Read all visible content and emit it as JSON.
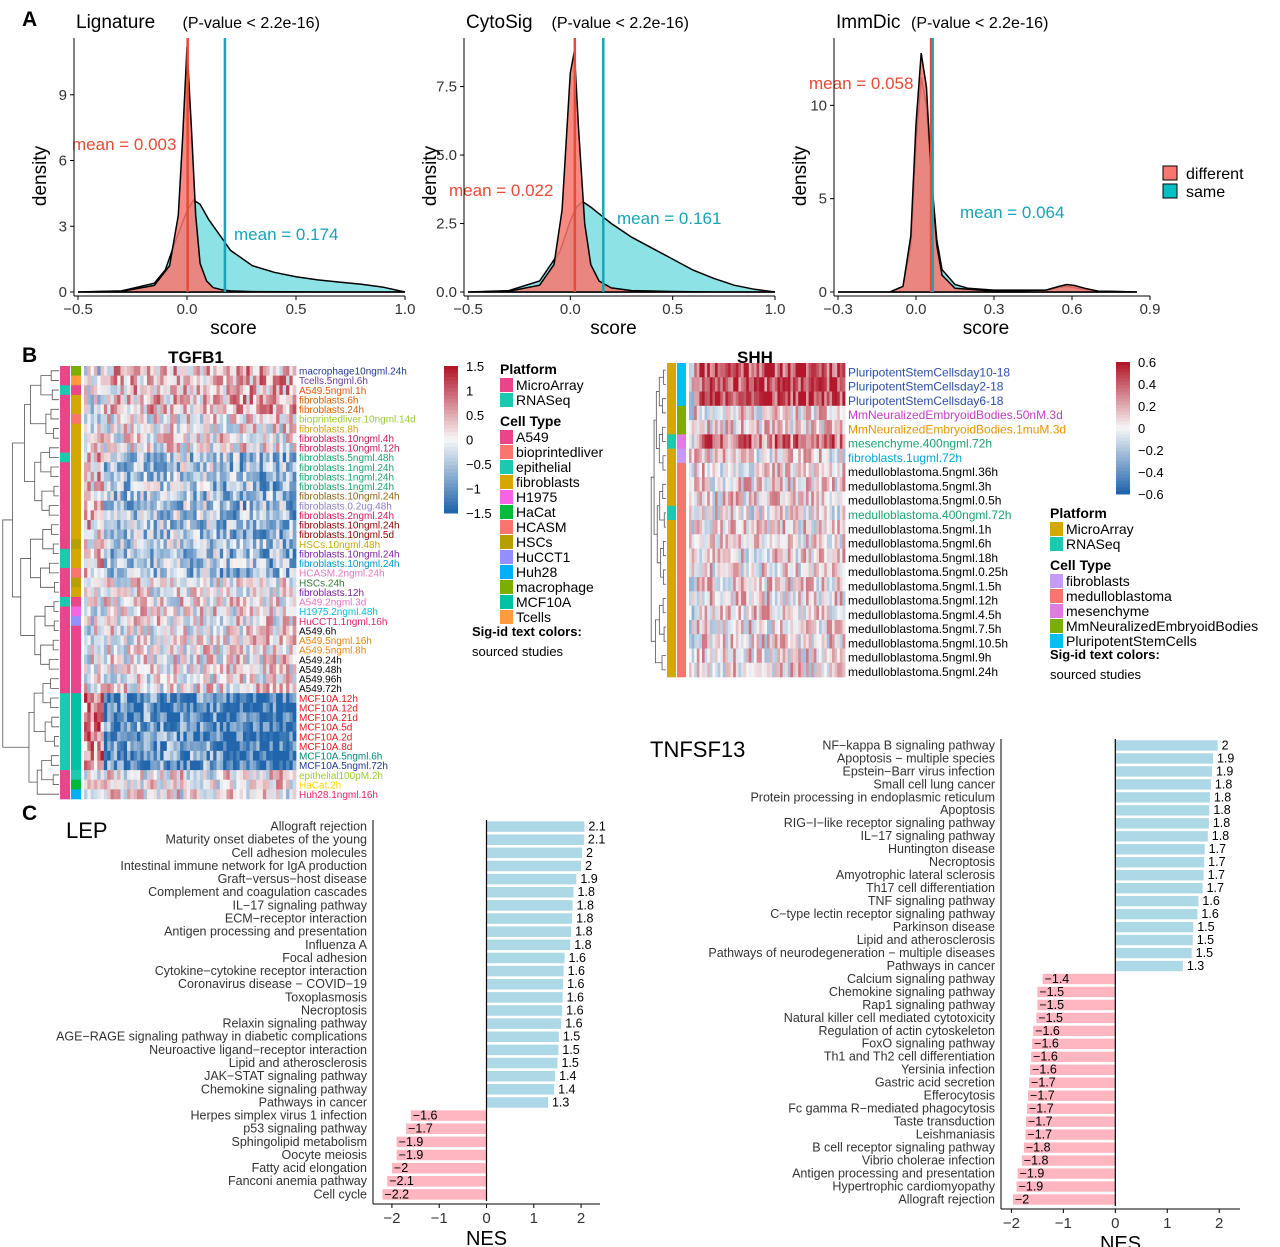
{
  "panel_letters": [
    "A",
    "B",
    "C"
  ],
  "colors": {
    "different": "#F8766D",
    "same": "#00BFC4",
    "mean_different": "#E64B35",
    "mean_same": "#17A3B8",
    "positive_bar": "#ADD8E6",
    "negative_bar": "#FFB6C1",
    "heat_low": "#2166AC",
    "heat_high": "#B2182B"
  },
  "chart_data": [
    {
      "type": "area",
      "title": "Lignature",
      "pvalue": "(P-value < 2.2e-16)",
      "xlabel": "score",
      "ylabel": "density",
      "xlim": [
        -0.5,
        1.0
      ],
      "ylim": [
        0,
        11.5
      ],
      "xticks": [
        "−0.5",
        "0.0",
        "0.5",
        "1.0"
      ],
      "xtick_values": [
        -0.5,
        0.0,
        0.5,
        1.0
      ],
      "yticks": [
        "0",
        "3",
        "6",
        "9"
      ],
      "ytick_values": [
        0,
        3,
        6,
        9
      ],
      "series": [
        {
          "name": "different",
          "x": [
            -0.5,
            -0.3,
            -0.15,
            -0.08,
            -0.04,
            -0.02,
            0,
            0.02,
            0.04,
            0.06,
            0.09,
            0.12,
            0.16,
            0.2,
            0.3,
            0.45,
            0.6,
            0.8,
            1.0
          ],
          "y": [
            0,
            0.03,
            0.3,
            1.2,
            3.5,
            7.0,
            11.2,
            7.5,
            3.5,
            1.3,
            0.5,
            0.2,
            0.1,
            0.05,
            0.02,
            0.01,
            0,
            0,
            0
          ]
        },
        {
          "name": "same",
          "x": [
            -0.5,
            -0.3,
            -0.15,
            -0.1,
            -0.05,
            0,
            0.03,
            0.06,
            0.1,
            0.15,
            0.2,
            0.3,
            0.4,
            0.5,
            0.6,
            0.7,
            0.8,
            0.9,
            1.0
          ],
          "y": [
            0,
            0.05,
            0.4,
            1.0,
            2.4,
            3.7,
            4.2,
            4.0,
            3.3,
            2.6,
            1.9,
            1.2,
            0.9,
            0.7,
            0.55,
            0.45,
            0.35,
            0.22,
            0
          ]
        }
      ],
      "means": [
        {
          "series": "different",
          "value": 0.003,
          "label": "mean = 0.003"
        },
        {
          "series": "same",
          "value": 0.174,
          "label": "mean = 0.174"
        }
      ]
    },
    {
      "type": "area",
      "title": "CytoSig",
      "pvalue": "(P-value < 2.2e-16)",
      "xlabel": "score",
      "ylabel": "density",
      "xlim": [
        -0.5,
        1.0
      ],
      "ylim": [
        0,
        9.2
      ],
      "xticks": [
        "−0.5",
        "0.0",
        "0.5",
        "1.0"
      ],
      "xtick_values": [
        -0.5,
        0.0,
        0.5,
        1.0
      ],
      "yticks": [
        "0.0",
        "2.5",
        "5.0",
        "7.5"
      ],
      "ytick_values": [
        0,
        2.5,
        5.0,
        7.5
      ],
      "series": [
        {
          "name": "different",
          "x": [
            -0.5,
            -0.3,
            -0.15,
            -0.08,
            -0.04,
            0,
            0.02,
            0.04,
            0.07,
            0.1,
            0.14,
            0.2,
            0.3,
            0.5,
            0.7,
            1.0
          ],
          "y": [
            0,
            0.03,
            0.25,
            1.0,
            3.0,
            8.0,
            8.8,
            6.0,
            2.5,
            1.0,
            0.4,
            0.15,
            0.05,
            0.02,
            0,
            0
          ]
        },
        {
          "name": "same",
          "x": [
            -0.5,
            -0.3,
            -0.15,
            -0.05,
            0,
            0.03,
            0.06,
            0.1,
            0.15,
            0.2,
            0.3,
            0.4,
            0.5,
            0.6,
            0.7,
            0.8,
            0.9,
            1.0
          ],
          "y": [
            0,
            0.05,
            0.4,
            1.5,
            2.6,
            3.1,
            3.3,
            3.1,
            2.8,
            2.5,
            2.0,
            1.6,
            1.2,
            0.8,
            0.5,
            0.25,
            0.1,
            0
          ]
        }
      ],
      "means": [
        {
          "series": "different",
          "value": 0.022,
          "label": "mean = 0.022"
        },
        {
          "series": "same",
          "value": 0.161,
          "label": "mean = 0.161"
        }
      ]
    },
    {
      "type": "area",
      "title": "ImmDic",
      "pvalue": "(P-value < 2.2e-16)",
      "xlabel": "score",
      "ylabel": "density",
      "xlim": [
        -0.3,
        0.9
      ],
      "ylim": [
        0,
        13.5
      ],
      "xticks": [
        "−0.3",
        "0.0",
        "0.3",
        "0.6",
        "0.9"
      ],
      "xtick_values": [
        -0.3,
        0.0,
        0.3,
        0.6,
        0.9
      ],
      "yticks": [
        "0",
        "5",
        "10"
      ],
      "ytick_values": [
        0,
        5,
        10
      ],
      "series": [
        {
          "name": "different",
          "x": [
            -0.3,
            -0.1,
            -0.05,
            -0.02,
            0,
            0.02,
            0.04,
            0.06,
            0.08,
            0.1,
            0.15,
            0.3,
            0.5,
            0.55,
            0.58,
            0.61,
            0.65,
            0.7,
            0.85
          ],
          "y": [
            0,
            0,
            0.3,
            3.0,
            9.0,
            12.8,
            11.0,
            6.0,
            2.5,
            0.9,
            0.2,
            0.05,
            0.1,
            0.3,
            0.4,
            0.35,
            0.2,
            0.05,
            0
          ]
        },
        {
          "name": "same",
          "x": [
            -0.3,
            -0.1,
            -0.05,
            -0.02,
            0,
            0.02,
            0.04,
            0.06,
            0.08,
            0.1,
            0.15,
            0.2,
            0.3,
            0.5,
            0.55,
            0.58,
            0.62,
            0.7,
            0.85
          ],
          "y": [
            0,
            0,
            0.3,
            2.5,
            8.0,
            11.5,
            10.0,
            6.0,
            2.8,
            1.2,
            0.4,
            0.2,
            0.1,
            0.1,
            0.25,
            0.3,
            0.2,
            0.05,
            0
          ]
        }
      ],
      "means": [
        {
          "series": "different",
          "value": 0.058,
          "label": "mean = 0.058"
        },
        {
          "series": "same",
          "value": 0.064,
          "label": "mean = 0.064"
        }
      ],
      "legend": {
        "entries": [
          "different",
          "same"
        ],
        "placement": "right"
      }
    },
    {
      "type": "heatmap",
      "title": "TGFB1",
      "rows": [
        "macrophage10ngml.24h",
        "Tcells.5ngml.6h",
        "A549.5ngml.1h",
        "fibroblasts.6h",
        "fibroblasts.24h",
        "bioprintedliver.10ngml.14d",
        "fibroblasts.8h",
        "fibroblasts.10ngml.4h",
        "fibroblasts.10ngml.12h",
        "fibroblasts.5ngml.48h",
        "fibroblasts.1ngml.24h",
        "fibroblasts.1ngml.24h",
        "fibroblasts.1ngml.24h",
        "fibroblasts.10ngml.24h",
        "fibroblasts.0.2ug.48h",
        "fibroblasts.2ngml.24h",
        "fibroblasts.10ngml.24h",
        "fibroblasts.10ngml.5d",
        "HSCs.10ngml.48h",
        "fibroblasts.10ngml.24h",
        "fibroblasts.10ngml.24h",
        "HCASM.2ngml.24h",
        "HSCs.24h",
        "fibroblasts.12h",
        "A549.2ngml.3d",
        "H1975.2ngml.48h",
        "HuCCT1.1ngml.16h",
        "A549.6h",
        "A549.5ngml.16h",
        "A549.5ngml.8h",
        "A549.24h",
        "A549.48h",
        "A549.96h",
        "A549.72h",
        "MCF10A.12h",
        "MCF10A.12d",
        "MCF10A.21d",
        "MCF10A.5d",
        "MCF10A.2d",
        "MCF10A.8d",
        "MCF10A.5ngml.6h",
        "MCF10A.5ngml.72h",
        "epithelial100pM.2h",
        "HaCat.2h",
        "Huh28.1ngml.16h"
      ],
      "row_colors": [
        "#1F3A93",
        "#6A3D9A",
        "#E6550D",
        "#D95F02",
        "#D95F02",
        "#9ACD32",
        "#D4A017",
        "#C2185B",
        "#C2185B",
        "#1AA36E",
        "#1AA36E",
        "#1AA36E",
        "#1AA36E",
        "#8B6914",
        "#8E7CC3",
        "#D4145A",
        "#8B0000",
        "#8B0000",
        "#C9A800",
        "#7B1FA2",
        "#0096C7",
        "#E377C2",
        "#2E7D32",
        "#7B1FA2",
        "#E377C2",
        "#00BCD4",
        "#E91E63",
        "#000000",
        "#E6850D",
        "#E6850D",
        "#000000",
        "#000000",
        "#000000",
        "#000000",
        "#E31A1C",
        "#E31A1C",
        "#E31A1C",
        "#E31A1C",
        "#E31A1C",
        "#E31A1C",
        "#00897B",
        "#1F3A93",
        "#9ACD32",
        "#FFD700",
        "#E91E63"
      ],
      "color_scale": {
        "ticks": [
          "1.5",
          "1",
          "0.5",
          "0",
          "−0.5",
          "−1",
          "−1.5"
        ],
        "values": [
          1.5,
          1,
          0.5,
          0,
          -0.5,
          -1,
          -1.5
        ]
      },
      "legend_platform": {
        "title": "Platform",
        "entries": [
          {
            "label": "MicroArray",
            "color": "#E8458B"
          },
          {
            "label": "RNASeq",
            "color": "#1BC9B0"
          }
        ]
      },
      "legend_celltype": {
        "title": "Cell Type",
        "entries": [
          {
            "label": "A549",
            "color": "#E8458B"
          },
          {
            "label": "bioprintedliver",
            "color": "#F8766D"
          },
          {
            "label": "epithelial",
            "color": "#1BC9B0"
          },
          {
            "label": "fibroblasts",
            "color": "#D4A800"
          },
          {
            "label": "H1975",
            "color": "#F564E3"
          },
          {
            "label": "HaCat",
            "color": "#00BA38"
          },
          {
            "label": "HCASM",
            "color": "#F8766D"
          },
          {
            "label": "HSCs",
            "color": "#B79F00"
          },
          {
            "label": "HuCCT1",
            "color": "#9590FF"
          },
          {
            "label": "Huh28",
            "color": "#00B0F6"
          },
          {
            "label": "macrophage",
            "color": "#7CAE00"
          },
          {
            "label": "MCF10A",
            "color": "#00C1A3"
          },
          {
            "label": "Tcells",
            "color": "#FF9A3D"
          }
        ]
      },
      "note": [
        "Sig-id text colors:",
        "sourced studies"
      ]
    },
    {
      "type": "heatmap",
      "title": "SHH",
      "rows": [
        "PluripotentStemCellsday10-18",
        "PluripotentStemCellsday2-18",
        "PluripotentStemCellsday6-18",
        "MmNeuralizedEmbryoidBodies.50nM.3d",
        "MmNeuralizedEmbryoidBodies.1muM.3d",
        "mesenchyme.400ngml.72h",
        "fibroblasts.1ugml.72h",
        "medulloblastoma.5ngml.36h",
        "medulloblastoma.5ngml.3h",
        "medulloblastoma.5ngml.0.5h",
        "medulloblastoma.400ngml.72h",
        "medulloblastoma.5ngml.1h",
        "medulloblastoma.5ngml.6h",
        "medulloblastoma.5ngml.18h",
        "medulloblastoma.5ngml.0.25h",
        "medulloblastoma.5ngml.1.5h",
        "medulloblastoma.5ngml.12h",
        "medulloblastoma.5ngml.4.5h",
        "medulloblastoma.5ngml.7.5h",
        "medulloblastoma.5ngml.10.5h",
        "medulloblastoma.5ngml.9h",
        "medulloblastoma.5ngml.24h"
      ],
      "row_colors": [
        "#2C4FA8",
        "#2C4FA8",
        "#2C4FA8",
        "#C040C0",
        "#E69500",
        "#1AA36E",
        "#00A6D6",
        "#000000",
        "#000000",
        "#000000",
        "#1AA36E",
        "#000000",
        "#000000",
        "#000000",
        "#000000",
        "#000000",
        "#000000",
        "#000000",
        "#000000",
        "#000000",
        "#000000",
        "#000000"
      ],
      "color_scale": {
        "ticks": [
          "0.6",
          "0.4",
          "0.2",
          "0",
          "−0.2",
          "−0.4",
          "−0.6"
        ],
        "values": [
          0.6,
          0.4,
          0.2,
          0,
          -0.2,
          -0.4,
          -0.6
        ]
      },
      "legend_platform": {
        "title": "Platform",
        "entries": [
          {
            "label": "MicroArray",
            "color": "#D4A800"
          },
          {
            "label": "RNASeq",
            "color": "#1BC9B0"
          }
        ]
      },
      "legend_celltype": {
        "title": "Cell Type",
        "entries": [
          {
            "label": "fibroblasts",
            "color": "#C59CF5"
          },
          {
            "label": "medulloblastoma",
            "color": "#F8766D"
          },
          {
            "label": "mesenchyme",
            "color": "#E07BE0"
          },
          {
            "label": "MmNeuralizedEmbryoidBodies",
            "color": "#7CAE00"
          },
          {
            "label": "PluripotentStemCells",
            "color": "#00C0F0"
          }
        ]
      },
      "note": [
        "Sig-id text colors:",
        "sourced studies"
      ]
    },
    {
      "type": "bar",
      "orientation": "horizontal",
      "title": "LEP",
      "xlabel": "NES",
      "xlim": [
        -2.4,
        2.4
      ],
      "xticks": [
        "−2",
        "−1",
        "0",
        "1",
        "2"
      ],
      "xtick_values": [
        -2,
        -1,
        0,
        1,
        2
      ],
      "categories": [
        "Allograft rejection",
        "Maturity onset diabetes of the young",
        "Cell adhesion molecules",
        "Intestinal immune network for IgA production",
        "Graft−versus−host disease",
        "Complement and coagulation cascades",
        "IL−17 signaling pathway",
        "ECM−receptor interaction",
        "Antigen processing and presentation",
        "Influenza A",
        "Focal adhesion",
        "Cytokine−cytokine receptor interaction",
        "Coronavirus disease − COVID−19",
        "Toxoplasmosis",
        "Necroptosis",
        "Relaxin signaling pathway",
        "AGE−RAGE signaling pathway in diabetic complications",
        "Neuroactive ligand−receptor interaction",
        "Lipid and atherosclerosis",
        "JAK−STAT signaling pathway",
        "Chemokine signaling pathway",
        "Pathways in cancer",
        "Herpes simplex virus 1 infection",
        "p53 signaling pathway",
        "Sphingolipid metabolism",
        "Oocyte meiosis",
        "Fatty acid elongation",
        "Fanconi anemia pathway",
        "Cell cycle"
      ],
      "values": [
        2.07,
        2.06,
        2.02,
        2.0,
        1.9,
        1.84,
        1.82,
        1.81,
        1.79,
        1.77,
        1.65,
        1.63,
        1.62,
        1.61,
        1.6,
        1.58,
        1.53,
        1.52,
        1.5,
        1.45,
        1.43,
        1.3,
        -1.6,
        -1.7,
        -1.9,
        -1.9,
        -2.0,
        -2.1,
        -2.2
      ],
      "labels": [
        "2.1",
        "2.1",
        "2",
        "2",
        "1.9",
        "1.8",
        "1.8",
        "1.8",
        "1.8",
        "1.8",
        "1.6",
        "1.6",
        "1.6",
        "1.6",
        "1.6",
        "1.6",
        "1.5",
        "1.5",
        "1.5",
        "1.4",
        "1.4",
        "1.3",
        "−1.6",
        "−1.7",
        "−1.9",
        "−1.9",
        "−2",
        "−2.1",
        "−2.2"
      ]
    },
    {
      "type": "bar",
      "orientation": "horizontal",
      "title": "TNFSF13",
      "xlabel": "NES",
      "xlim": [
        -2.2,
        2.4
      ],
      "xticks": [
        "−2",
        "−1",
        "0",
        "1",
        "2"
      ],
      "xtick_values": [
        -2,
        -1,
        0,
        1,
        2
      ],
      "categories": [
        "NF−kappa B signaling pathway",
        "Apoptosis − multiple species",
        "Epstein−Barr virus infection",
        "Small cell lung cancer",
        "Protein processing in endoplasmic reticulum",
        "Apoptosis",
        "RIG−I−like receptor signaling pathway",
        "IL−17 signaling pathway",
        "Huntington disease",
        "Necroptosis",
        "Amyotrophic lateral sclerosis",
        "Th17 cell differentiation",
        "TNF signaling pathway",
        "C−type lectin receptor signaling pathway",
        "Parkinson disease",
        "Lipid and atherosclerosis",
        "Pathways of neurodegeneration − multiple diseases",
        "Pathways in cancer",
        "Calcium signaling pathway",
        "Chemokine signaling pathway",
        "Rap1 signaling pathway",
        "Natural killer cell mediated cytotoxicity",
        "Regulation of actin cytoskeleton",
        "FoxO signaling pathway",
        "Th1 and Th2 cell differentiation",
        "Yersinia infection",
        "Gastric acid secretion",
        "Efferocytosis",
        "Fc gamma R−mediated phagocytosis",
        "Taste transduction",
        "Leishmaniasis",
        "B cell receptor signaling pathway",
        "Vibrio cholerae infection",
        "Antigen processing and presentation",
        "Hypertrophic cardiomyopathy",
        "Allograft rejection"
      ],
      "values": [
        1.97,
        1.88,
        1.86,
        1.84,
        1.82,
        1.81,
        1.8,
        1.78,
        1.72,
        1.71,
        1.7,
        1.68,
        1.6,
        1.58,
        1.5,
        1.49,
        1.47,
        1.3,
        -1.4,
        -1.5,
        -1.5,
        -1.52,
        -1.58,
        -1.6,
        -1.62,
        -1.64,
        -1.66,
        -1.68,
        -1.7,
        -1.72,
        -1.73,
        -1.76,
        -1.8,
        -1.88,
        -1.9,
        -1.97
      ],
      "labels": [
        "2",
        "1.9",
        "1.9",
        "1.8",
        "1.8",
        "1.8",
        "1.8",
        "1.8",
        "1.7",
        "1.7",
        "1.7",
        "1.7",
        "1.6",
        "1.6",
        "1.5",
        "1.5",
        "1.5",
        "1.3",
        "−1.4",
        "−1.5",
        "−1.5",
        "−1.5",
        "−1.6",
        "−1.6",
        "−1.6",
        "−1.6",
        "−1.7",
        "−1.7",
        "−1.7",
        "−1.7",
        "−1.7",
        "−1.8",
        "−1.8",
        "−1.9",
        "−1.9",
        "−2"
      ]
    }
  ]
}
